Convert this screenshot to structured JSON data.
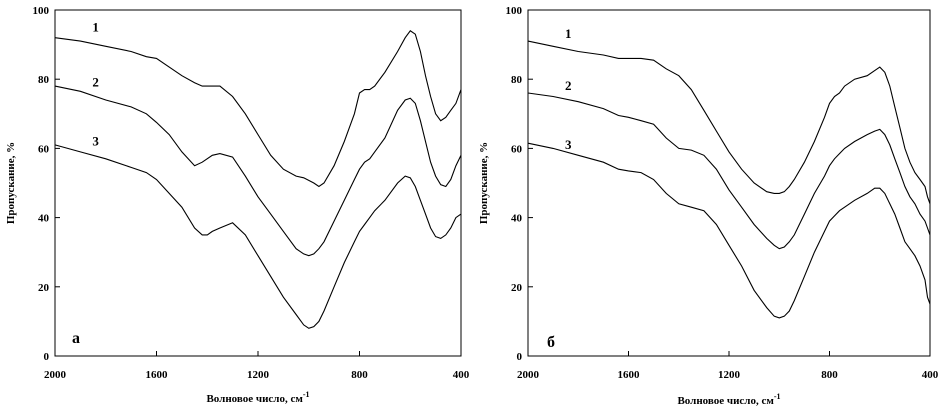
{
  "chart_data": [
    {
      "type": "line",
      "panel_label": "а",
      "xlabel": "Волновое число, см",
      "xlabel_sup": "-1",
      "ylabel": "Пропускание, %",
      "xlim": [
        2000,
        400
      ],
      "ylim": [
        0,
        100
      ],
      "xticks": [
        2000,
        1600,
        1200,
        800,
        400
      ],
      "yticks": [
        0,
        20,
        40,
        60,
        80,
        100
      ],
      "series": [
        {
          "name": "1",
          "label_at": [
            1840,
            95
          ],
          "x": [
            2000,
            1900,
            1800,
            1700,
            1640,
            1600,
            1550,
            1500,
            1450,
            1420,
            1380,
            1350,
            1300,
            1250,
            1200,
            1150,
            1100,
            1050,
            1020,
            980,
            960,
            940,
            900,
            860,
            820,
            800,
            780,
            760,
            740,
            700,
            650,
            620,
            600,
            580,
            560,
            540,
            520,
            500,
            480,
            460,
            440,
            420,
            400
          ],
          "y": [
            92,
            91,
            89.5,
            88,
            86.5,
            86,
            83.5,
            81,
            79,
            78,
            78,
            78,
            75,
            70,
            64,
            58,
            54,
            52,
            51.5,
            50,
            49,
            50,
            55,
            62,
            70,
            76,
            77,
            77,
            78,
            82,
            88,
            92,
            94,
            93,
            88,
            81,
            75,
            70,
            68,
            69,
            71,
            73,
            77
          ]
        },
        {
          "name": "2",
          "label_at": [
            1840,
            79
          ],
          "x": [
            2000,
            1900,
            1800,
            1700,
            1640,
            1600,
            1550,
            1500,
            1450,
            1420,
            1380,
            1350,
            1300,
            1250,
            1200,
            1150,
            1100,
            1050,
            1020,
            1000,
            980,
            960,
            940,
            900,
            860,
            820,
            800,
            780,
            760,
            740,
            700,
            650,
            620,
            600,
            580,
            560,
            540,
            520,
            500,
            480,
            460,
            440,
            420,
            400
          ],
          "y": [
            78,
            76.5,
            74,
            72,
            70,
            67.5,
            64,
            59,
            55,
            56,
            58,
            58.5,
            57.5,
            52,
            46,
            41,
            36,
            31,
            29.5,
            29,
            29.5,
            31,
            33,
            39,
            45,
            51,
            54,
            56,
            57,
            59,
            63,
            71,
            74,
            74.5,
            73,
            68,
            62,
            56,
            52,
            49.5,
            49,
            51,
            55,
            58
          ]
        },
        {
          "name": "3",
          "label_at": [
            1840,
            62
          ],
          "x": [
            2000,
            1900,
            1800,
            1700,
            1640,
            1600,
            1550,
            1500,
            1450,
            1420,
            1400,
            1380,
            1350,
            1300,
            1250,
            1200,
            1150,
            1100,
            1050,
            1020,
            1000,
            980,
            960,
            940,
            900,
            860,
            820,
            800,
            780,
            760,
            740,
            700,
            650,
            620,
            600,
            580,
            560,
            540,
            520,
            500,
            480,
            460,
            440,
            420,
            400
          ],
          "y": [
            61,
            59,
            57,
            54.5,
            53,
            51,
            47,
            43,
            37,
            35,
            35,
            36,
            37,
            38.5,
            35,
            29,
            23,
            17,
            12,
            9,
            8,
            8.5,
            10,
            13,
            20,
            27,
            33,
            36,
            38,
            40,
            42,
            45,
            50,
            52,
            51.5,
            49,
            45,
            41,
            37,
            34.5,
            34,
            35,
            37,
            40,
            41
          ]
        }
      ]
    },
    {
      "type": "line",
      "panel_label": "б",
      "xlabel": "Волновое число, см",
      "xlabel_sup": "-1",
      "ylabel": "Пропускание, %",
      "xlim": [
        2000,
        400
      ],
      "ylim": [
        0,
        100
      ],
      "xticks": [
        2000,
        1600,
        1200,
        800,
        400
      ],
      "yticks": [
        0,
        20,
        40,
        60,
        80,
        100
      ],
      "series": [
        {
          "name": "1",
          "label_at": [
            1840,
            93
          ],
          "x": [
            2000,
            1900,
            1800,
            1700,
            1640,
            1600,
            1550,
            1500,
            1450,
            1400,
            1350,
            1300,
            1250,
            1200,
            1150,
            1100,
            1050,
            1020,
            1000,
            980,
            960,
            940,
            900,
            860,
            820,
            800,
            780,
            760,
            740,
            700,
            650,
            620,
            600,
            580,
            560,
            540,
            520,
            500,
            480,
            460,
            440,
            420,
            410,
            400
          ],
          "y": [
            91,
            89.5,
            88,
            87,
            86,
            86,
            86,
            85.5,
            83,
            81,
            77,
            71,
            65,
            59,
            54,
            50,
            47.5,
            47,
            47,
            47.5,
            49,
            51,
            56,
            62,
            69,
            73,
            75,
            76,
            78,
            80,
            81,
            82.5,
            83.5,
            82,
            78,
            72,
            66,
            60,
            56,
            53,
            51,
            49,
            46,
            44
          ]
        },
        {
          "name": "2",
          "label_at": [
            1840,
            78
          ],
          "x": [
            2000,
            1900,
            1800,
            1700,
            1640,
            1600,
            1550,
            1500,
            1450,
            1400,
            1350,
            1300,
            1250,
            1200,
            1150,
            1100,
            1050,
            1020,
            1000,
            980,
            960,
            940,
            900,
            860,
            820,
            800,
            780,
            760,
            740,
            700,
            650,
            620,
            600,
            580,
            560,
            540,
            520,
            500,
            480,
            460,
            440,
            420,
            410,
            400
          ],
          "y": [
            76,
            75,
            73.5,
            71.5,
            69.5,
            69,
            68,
            67,
            63,
            60,
            59.5,
            58,
            54,
            48,
            43,
            38,
            34,
            32,
            31,
            31.5,
            33,
            35,
            41,
            47,
            52,
            55,
            57,
            58.5,
            60,
            62,
            64,
            65,
            65.5,
            64,
            61,
            57,
            53,
            49,
            46,
            44,
            41,
            39,
            37,
            35
          ]
        },
        {
          "name": "3",
          "label_at": [
            1840,
            61
          ],
          "x": [
            2000,
            1900,
            1800,
            1700,
            1640,
            1600,
            1550,
            1500,
            1450,
            1400,
            1350,
            1300,
            1250,
            1200,
            1150,
            1100,
            1050,
            1020,
            1000,
            980,
            960,
            940,
            900,
            860,
            820,
            800,
            780,
            760,
            740,
            700,
            650,
            620,
            600,
            580,
            560,
            540,
            520,
            500,
            480,
            460,
            440,
            420,
            410,
            400
          ],
          "y": [
            61.5,
            60,
            58,
            56,
            54,
            53.5,
            53,
            51,
            47,
            44,
            43,
            42,
            38,
            32,
            26,
            19,
            14,
            11.5,
            11,
            11.5,
            13,
            16,
            23,
            30,
            36,
            39,
            40.5,
            42,
            43,
            45,
            47,
            48.5,
            48.5,
            47,
            44,
            41,
            37,
            33,
            31,
            29,
            26,
            22,
            17,
            15
          ]
        }
      ]
    }
  ]
}
